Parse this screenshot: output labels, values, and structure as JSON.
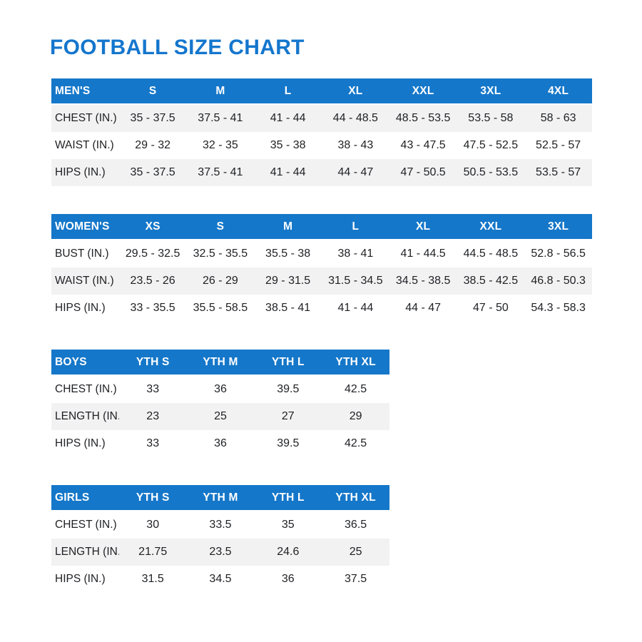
{
  "page": {
    "title": "FOOTBALL SIZE CHART"
  },
  "colors": {
    "header_blue": "#1577c9",
    "title_blue": "#1476cd",
    "row_alt": "#f2f2f3",
    "text": "#1f2023"
  },
  "tables": [
    {
      "id": "mens",
      "band": "odd",
      "header": [
        "MEN'S",
        "S",
        "M",
        "L",
        "XL",
        "XXL",
        "3XL",
        "4XL"
      ],
      "rows": [
        {
          "label": "CHEST (IN.)",
          "values": [
            "35 - 37.5",
            "37.5 - 41",
            "41 - 44",
            "44 - 48.5",
            "48.5 - 53.5",
            "53.5 - 58",
            "58 - 63"
          ]
        },
        {
          "label": "WAIST (IN.)",
          "values": [
            "29 - 32",
            "32 - 35",
            "35 - 38",
            "38 - 43",
            "43 - 47.5",
            "47.5 - 52.5",
            "52.5 - 57"
          ]
        },
        {
          "label": "HIPS (IN.)",
          "values": [
            "35 - 37.5",
            "37.5 - 41",
            "41 - 44",
            "44 - 47",
            "47 - 50.5",
            "50.5 - 53.5",
            "53.5 - 57"
          ]
        }
      ]
    },
    {
      "id": "womens",
      "band": "even",
      "header": [
        "WOMEN'S",
        "XS",
        "S",
        "M",
        "L",
        "XL",
        "XXL",
        "3XL"
      ],
      "rows": [
        {
          "label": "BUST (IN.)",
          "values": [
            "29.5 - 32.5",
            "32.5 - 35.5",
            "35.5 - 38",
            "38 - 41",
            "41 - 44.5",
            "44.5 - 48.5",
            "52.8 - 56.5"
          ]
        },
        {
          "label": "WAIST (IN.)",
          "values": [
            "23.5 - 26",
            "26 - 29",
            "29 - 31.5",
            "31.5 - 34.5",
            "34.5 - 38.5",
            "38.5 - 42.5",
            "46.8 - 50.3"
          ]
        },
        {
          "label": "HIPS (IN.)",
          "values": [
            "33 - 35.5",
            "35.5 - 58.5",
            "38.5 - 41",
            "41 - 44",
            "44 - 47",
            "47 - 50",
            "54.3 - 58.3"
          ]
        }
      ]
    },
    {
      "id": "boys",
      "band": "even",
      "header": [
        "BOYS",
        "YTH S",
        "YTH M",
        "YTH L",
        "YTH XL"
      ],
      "rows": [
        {
          "label": "CHEST (IN.)",
          "values": [
            "33",
            "36",
            "39.5",
            "42.5"
          ]
        },
        {
          "label": "LENGTH (IN.)",
          "values": [
            "23",
            "25",
            "27",
            "29"
          ]
        },
        {
          "label": "HIPS (IN.)",
          "values": [
            "33",
            "36",
            "39.5",
            "42.5"
          ]
        }
      ]
    },
    {
      "id": "girls",
      "band": "even",
      "header": [
        "GIRLS",
        "YTH S",
        "YTH M",
        "YTH L",
        "YTH XL"
      ],
      "rows": [
        {
          "label": "CHEST (IN.)",
          "values": [
            "30",
            "33.5",
            "35",
            "36.5"
          ]
        },
        {
          "label": "LENGTH (IN.)",
          "values": [
            "21.75",
            "23.5",
            "24.6",
            "25"
          ]
        },
        {
          "label": "HIPS (IN.)",
          "values": [
            "31.5",
            "34.5",
            "36",
            "37.5"
          ]
        }
      ]
    }
  ]
}
